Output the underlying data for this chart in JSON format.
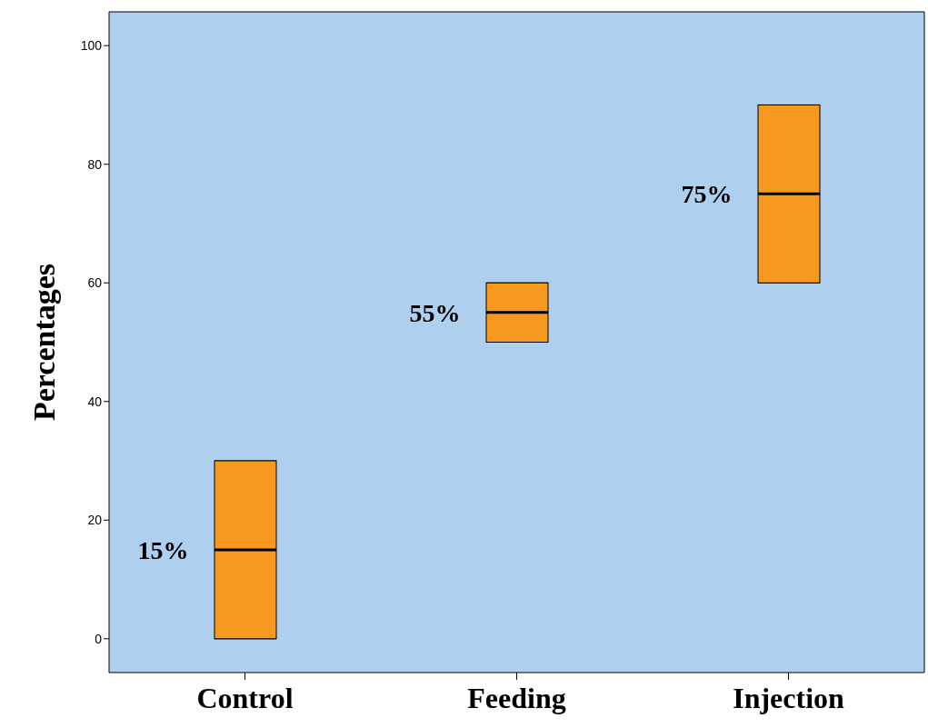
{
  "chart_data": {
    "type": "box",
    "ylabel": "Percentages",
    "categories": [
      "Control",
      "Feeding",
      "Injection"
    ],
    "boxes": [
      {
        "low": 0,
        "q1": 0,
        "median": 15,
        "q3": 30,
        "high": 30
      },
      {
        "low": 50,
        "q1": 50,
        "median": 55,
        "q3": 60,
        "high": 60
      },
      {
        "low": 60,
        "q1": 60,
        "median": 75,
        "q3": 90,
        "high": 90
      }
    ],
    "color": "#f7991f",
    "ylim": [
      -5.7,
      105.7
    ],
    "yticks": [
      0,
      20,
      40,
      60,
      80,
      100
    ],
    "grid": false,
    "annotations": [
      {
        "text": "15%",
        "x": "Control",
        "y": 15
      },
      {
        "text": "55%",
        "x": "Feeding",
        "y": 55
      },
      {
        "text": "75%",
        "x": "Injection",
        "y": 75
      }
    ]
  }
}
